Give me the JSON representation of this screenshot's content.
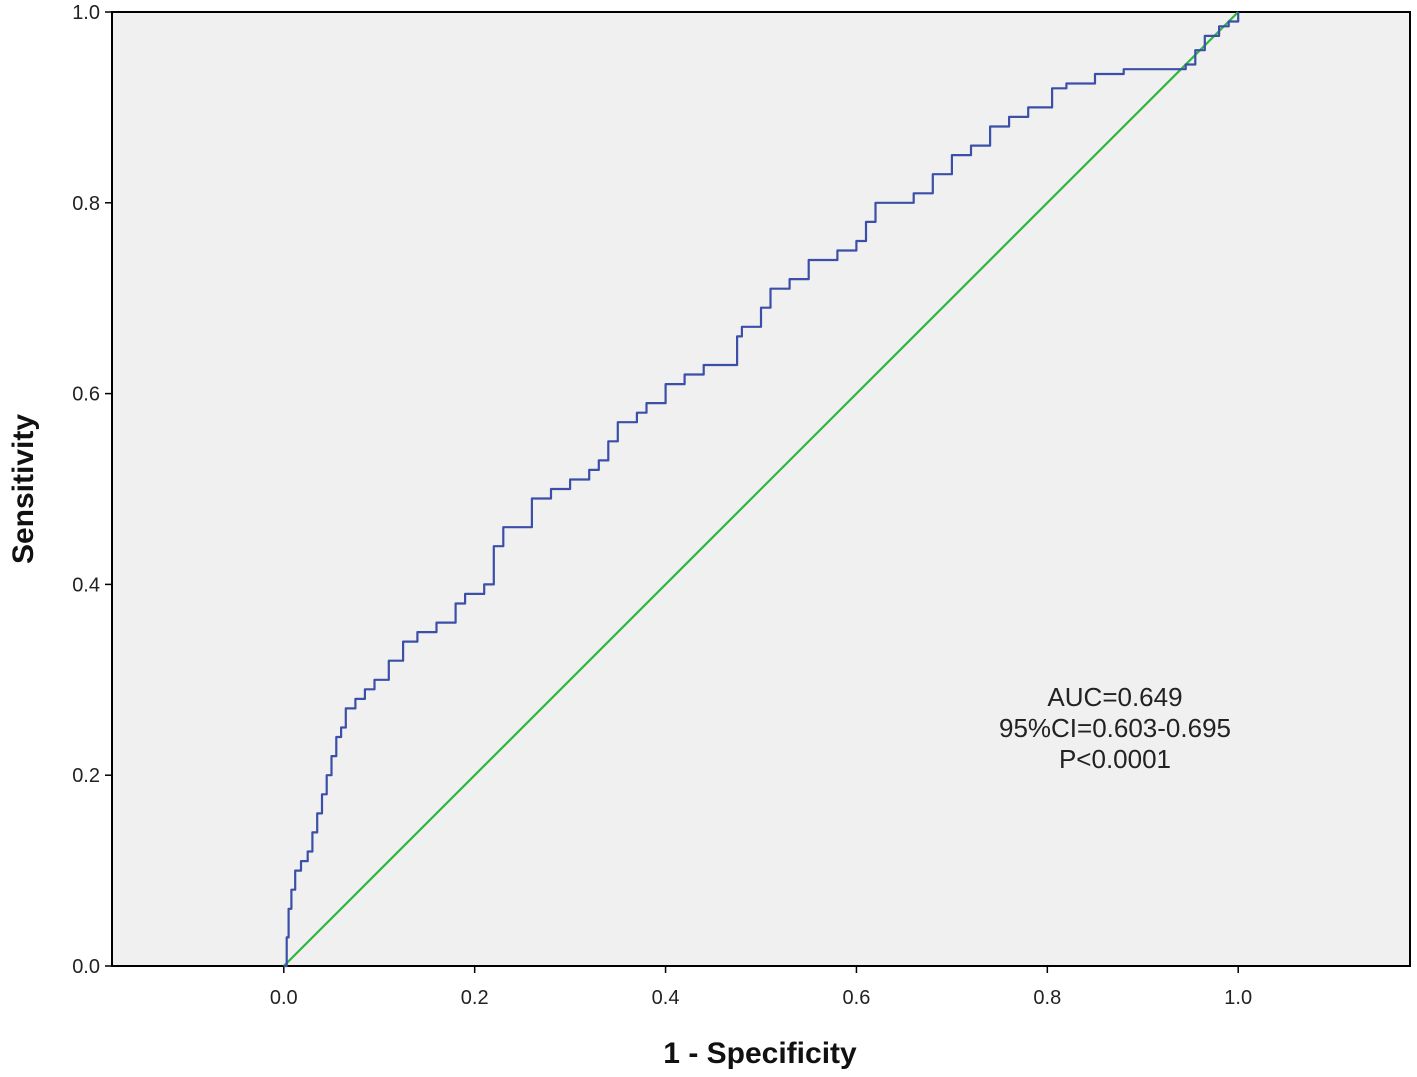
{
  "chart_data": {
    "type": "line",
    "title": "",
    "xlabel": "1 - Specificity",
    "ylabel": "Sensitivity",
    "xlim": [
      -0.18,
      1.18
    ],
    "ylim": [
      0,
      1
    ],
    "x_ticks": [
      "0.0",
      "0.2",
      "0.4",
      "0.6",
      "0.8",
      "1.0"
    ],
    "y_ticks": [
      "0.0",
      "0.2",
      "0.4",
      "0.6",
      "0.8",
      "1.0"
    ],
    "grid": false,
    "background_color": "#f0f0f0",
    "series": [
      {
        "color": "#3b4fa8",
        "step": true,
        "x": [
          0,
          0.003,
          0.005,
          0.008,
          0.012,
          0.018,
          0.025,
          0.03,
          0.035,
          0.04,
          0.045,
          0.05,
          0.055,
          0.06,
          0.065,
          0.075,
          0.085,
          0.095,
          0.11,
          0.125,
          0.14,
          0.16,
          0.18,
          0.19,
          0.21,
          0.22,
          0.23,
          0.26,
          0.28,
          0.3,
          0.32,
          0.33,
          0.34,
          0.35,
          0.37,
          0.38,
          0.4,
          0.42,
          0.44,
          0.47,
          0.475,
          0.48,
          0.5,
          0.51,
          0.53,
          0.55,
          0.58,
          0.6,
          0.61,
          0.62,
          0.66,
          0.68,
          0.7,
          0.72,
          0.74,
          0.76,
          0.78,
          0.8,
          0.805,
          0.82,
          0.85,
          0.88,
          0.91,
          0.93,
          0.945,
          0.955,
          0.965,
          0.98,
          0.99,
          1.0
        ],
        "y": [
          0,
          0.03,
          0.06,
          0.08,
          0.1,
          0.11,
          0.12,
          0.14,
          0.16,
          0.18,
          0.2,
          0.22,
          0.24,
          0.25,
          0.27,
          0.28,
          0.29,
          0.3,
          0.32,
          0.34,
          0.35,
          0.36,
          0.38,
          0.39,
          0.4,
          0.44,
          0.46,
          0.49,
          0.5,
          0.51,
          0.52,
          0.53,
          0.55,
          0.57,
          0.58,
          0.59,
          0.61,
          0.62,
          0.63,
          0.63,
          0.66,
          0.67,
          0.69,
          0.71,
          0.72,
          0.74,
          0.75,
          0.76,
          0.78,
          0.8,
          0.81,
          0.83,
          0.85,
          0.86,
          0.88,
          0.89,
          0.9,
          0.9,
          0.92,
          0.925,
          0.935,
          0.94,
          0.94,
          0.94,
          0.945,
          0.96,
          0.975,
          0.985,
          0.99,
          1.0
        ]
      },
      {
        "color": "#2db83d",
        "step": false,
        "x": [
          0,
          1
        ],
        "y": [
          0,
          1
        ]
      }
    ],
    "annotations": [
      "AUC=0.649",
      "95%CI=0.603-0.695",
      "P<0.0001"
    ]
  }
}
